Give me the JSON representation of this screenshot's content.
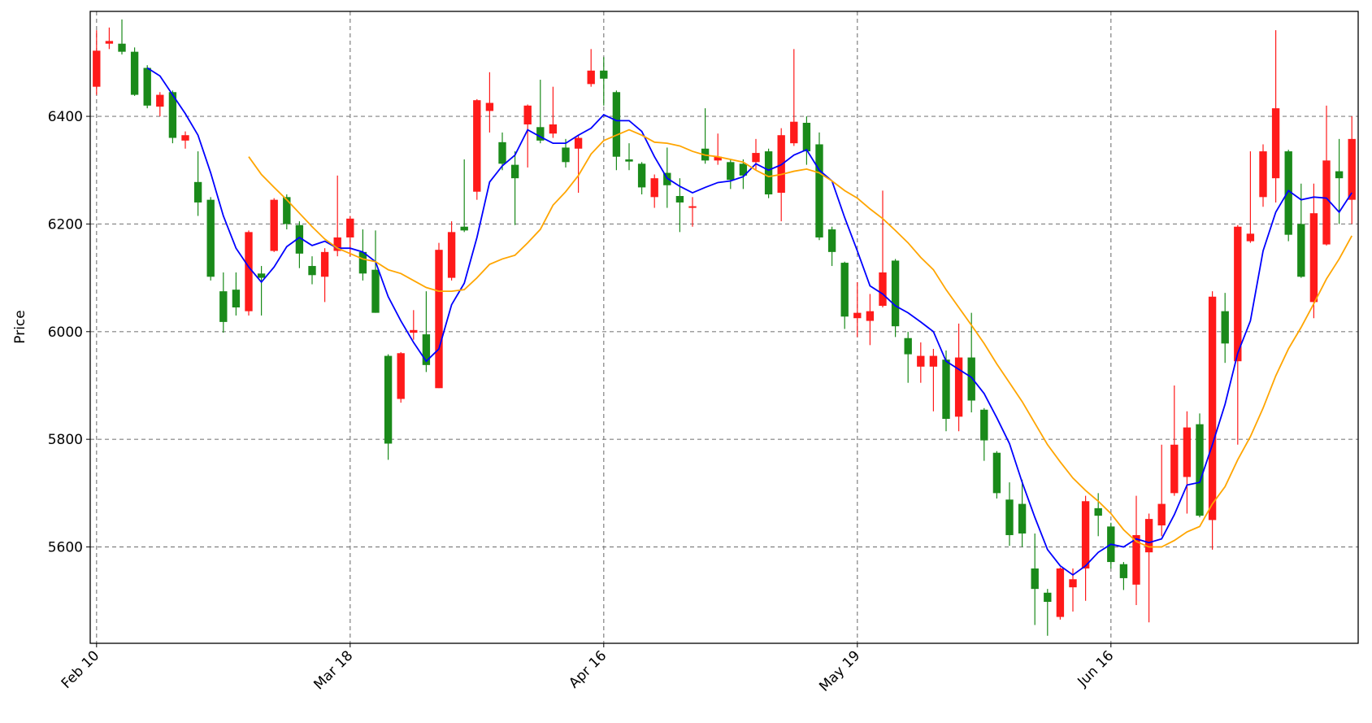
{
  "chart_data": {
    "type": "candlestick",
    "ylabel": "Price",
    "categories": [
      "Feb 10",
      null,
      null,
      null,
      null,
      null,
      null,
      null,
      null,
      null,
      null,
      null,
      null,
      null,
      null,
      null,
      null,
      null,
      null,
      null,
      "Mar 18",
      null,
      null,
      null,
      null,
      null,
      null,
      null,
      null,
      null,
      null,
      null,
      null,
      null,
      null,
      null,
      null,
      null,
      null,
      null,
      "Apr 16",
      null,
      null,
      null,
      null,
      null,
      null,
      null,
      null,
      null,
      null,
      null,
      null,
      null,
      null,
      null,
      null,
      null,
      null,
      null,
      "May 19",
      null,
      null,
      null,
      null,
      null,
      null,
      null,
      null,
      null,
      null,
      null,
      null,
      null,
      null,
      null,
      null,
      null,
      null,
      null,
      "Jun 16",
      null,
      null,
      null,
      null,
      null,
      null,
      null,
      null,
      null,
      null,
      null,
      null,
      null,
      null,
      null,
      null,
      null,
      null,
      null
    ],
    "open": [
      6455,
      6535,
      6535,
      6520,
      6490,
      6418,
      6445,
      6355,
      6278,
      6245,
      6075,
      6078,
      6038,
      6108,
      6150,
      6250,
      6198,
      6122,
      6102,
      6150,
      6175,
      6148,
      6115,
      5955,
      5875,
      5998,
      5995,
      5895,
      6100,
      6195,
      6260,
      6410,
      6352,
      6310,
      6385,
      6380,
      6368,
      6342,
      6340,
      6460,
      6485,
      6445,
      6320,
      6312,
      6250,
      6295,
      6252,
      6230,
      6340,
      6318,
      6315,
      6312,
      6315,
      6335,
      6258,
      6350,
      6388,
      6348,
      6190,
      6128,
      6025,
      6020,
      6048,
      6132,
      5988,
      5935,
      5935,
      5948,
      5842,
      5952,
      5855,
      5775,
      5688,
      5680,
      5560,
      5515,
      5470,
      5525,
      5560,
      5672,
      5638,
      5568,
      5530,
      5590,
      5640,
      5700,
      5730,
      5828,
      5650,
      6038,
      5945,
      6168,
      6250,
      6285,
      6335,
      6200,
      6055,
      6162,
      6298,
      6245
    ],
    "high": [
      6560,
      6565,
      6580,
      6528,
      6495,
      6445,
      6448,
      6372,
      6335,
      6250,
      6110,
      6110,
      6188,
      6122,
      6248,
      6255,
      6205,
      6140,
      6155,
      6290,
      6215,
      6190,
      6188,
      5958,
      5962,
      6040,
      6075,
      6165,
      6205,
      6320,
      6432,
      6482,
      6370,
      6335,
      6422,
      6468,
      6455,
      6358,
      6365,
      6525,
      6510,
      6448,
      6350,
      6315,
      6292,
      6342,
      6285,
      6250,
      6415,
      6368,
      6320,
      6320,
      6358,
      6340,
      6378,
      6525,
      6400,
      6370,
      6195,
      6130,
      6092,
      6070,
      6262,
      6135,
      6000,
      5980,
      5968,
      5965,
      6015,
      6035,
      5858,
      5778,
      5720,
      5725,
      5625,
      5522,
      5562,
      5560,
      5695,
      5700,
      5645,
      5572,
      5695,
      5662,
      5790,
      5900,
      5852,
      5848,
      6075,
      6072,
      6198,
      6335,
      6348,
      6560,
      6338,
      6275,
      6275,
      6420,
      6358,
      6400
    ],
    "low": [
      6440,
      6525,
      6515,
      6438,
      6415,
      6400,
      6350,
      6340,
      6215,
      6095,
      5998,
      6030,
      6030,
      6030,
      6148,
      6190,
      6118,
      6088,
      6055,
      6140,
      6140,
      6095,
      6035,
      5762,
      5868,
      5985,
      5925,
      5895,
      6095,
      6185,
      6245,
      6370,
      6300,
      6198,
      6305,
      6350,
      6360,
      6305,
      6258,
      6455,
      6420,
      6300,
      6300,
      6255,
      6230,
      6230,
      6185,
      6195,
      6312,
      6310,
      6265,
      6265,
      6300,
      6248,
      6205,
      6345,
      6310,
      6170,
      6122,
      6005,
      5990,
      5975,
      6045,
      5990,
      5905,
      5905,
      5852,
      5815,
      5815,
      5850,
      5760,
      5690,
      5602,
      5600,
      5455,
      5435,
      5465,
      5480,
      5500,
      5620,
      5560,
      5520,
      5492,
      5460,
      5620,
      5695,
      5662,
      5655,
      5595,
      5942,
      5790,
      6165,
      6232,
      6240,
      6168,
      6100,
      6025,
      6160,
      6200,
      6200
    ],
    "close": [
      6522,
      6540,
      6520,
      6440,
      6420,
      6440,
      6360,
      6365,
      6240,
      6102,
      6018,
      6045,
      6185,
      6100,
      6245,
      6200,
      6145,
      6105,
      6148,
      6175,
      6210,
      6108,
      6035,
      5792,
      5960,
      6003,
      5938,
      6152,
      6185,
      6188,
      6430,
      6425,
      6312,
      6285,
      6420,
      6355,
      6385,
      6315,
      6360,
      6485,
      6470,
      6325,
      6316,
      6268,
      6285,
      6272,
      6240,
      6233,
      6318,
      6325,
      6282,
      6290,
      6332,
      6255,
      6365,
      6390,
      6335,
      6175,
      6148,
      6028,
      6035,
      6038,
      6110,
      6010,
      5958,
      5955,
      5955,
      5838,
      5952,
      5872,
      5798,
      5700,
      5622,
      5625,
      5522,
      5498,
      5560,
      5540,
      5685,
      5658,
      5572,
      5542,
      5622,
      5652,
      5680,
      5790,
      5822,
      5658,
      6065,
      5978,
      6195,
      6182,
      6335,
      6415,
      6180,
      6102,
      6220,
      6318,
      6285,
      6358
    ],
    "up_color": "#ff1a1a",
    "down_color": "#1a8a1a",
    "lines": [
      {
        "color": "#0000ff",
        "values": [
          null,
          null,
          null,
          null,
          6490,
          6475,
          6440,
          6405,
          6365,
          6295,
          6215,
          6155,
          6120,
          6092,
          6120,
          6158,
          6175,
          6160,
          6168,
          6155,
          6155,
          6148,
          6130,
          6065,
          6020,
          5980,
          5945,
          5968,
          6050,
          6090,
          6175,
          6278,
          6308,
          6328,
          6375,
          6362,
          6350,
          6350,
          6365,
          6378,
          6403,
          6392,
          6392,
          6372,
          6325,
          6285,
          6270,
          6258,
          6268,
          6277,
          6280,
          6288,
          6312,
          6300,
          6310,
          6328,
          6338,
          6300,
          6280,
          6212,
          6150,
          6085,
          6070,
          6048,
          6035,
          6018,
          6000,
          5945,
          5930,
          5915,
          5885,
          5840,
          5792,
          5720,
          5655,
          5595,
          5565,
          5548,
          5565,
          5590,
          5605,
          5600,
          5615,
          5608,
          5615,
          5660,
          5715,
          5720,
          5790,
          5865,
          5960,
          6020,
          6150,
          6222,
          6262,
          6245,
          6250,
          6248,
          6222,
          6258
        ]
      },
      {
        "color": "#ffa500",
        "values": [
          null,
          null,
          null,
          null,
          null,
          null,
          null,
          null,
          null,
          null,
          null,
          null,
          6325,
          6292,
          6268,
          6245,
          6220,
          6195,
          6172,
          6155,
          6145,
          6135,
          6130,
          6115,
          6108,
          6095,
          6082,
          6075,
          6075,
          6078,
          6100,
          6125,
          6135,
          6142,
          6165,
          6190,
          6235,
          6260,
          6290,
          6330,
          6355,
          6365,
          6375,
          6365,
          6352,
          6350,
          6345,
          6335,
          6328,
          6325,
          6320,
          6315,
          6300,
          6288,
          6292,
          6298,
          6302,
          6295,
          6280,
          6262,
          6248,
          6228,
          6210,
          6188,
          6165,
          6138,
          6115,
          6078,
          6045,
          6012,
          5978,
          5940,
          5905,
          5870,
          5830,
          5790,
          5758,
          5728,
          5705,
          5685,
          5662,
          5632,
          5610,
          5600,
          5600,
          5612,
          5628,
          5638,
          5680,
          5712,
          5762,
          5805,
          5858,
          5918,
          5968,
          6008,
          6052,
          6098,
          6135,
          6178
        ]
      }
    ],
    "ylim": [
      5421,
      6595
    ],
    "yticks": [
      5600,
      5800,
      6000,
      6200,
      6400
    ],
    "grid": true
  }
}
